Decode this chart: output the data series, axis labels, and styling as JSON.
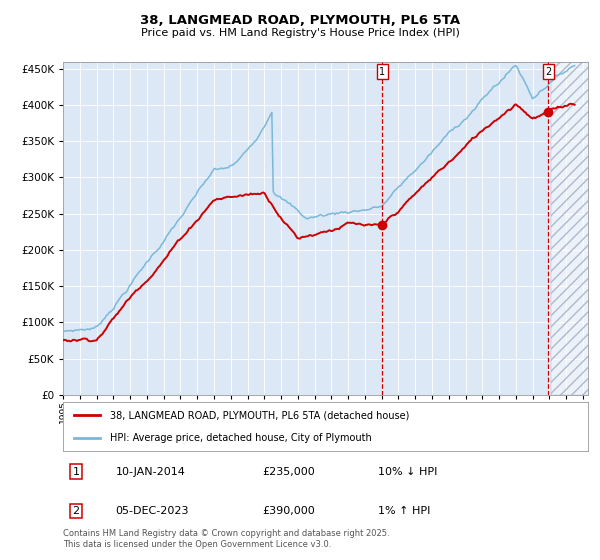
{
  "title": "38, LANGMEAD ROAD, PLYMOUTH, PL6 5TA",
  "subtitle": "Price paid vs. HM Land Registry's House Price Index (HPI)",
  "legend_line1": "38, LANGMEAD ROAD, PLYMOUTH, PL6 5TA (detached house)",
  "legend_line2": "HPI: Average price, detached house, City of Plymouth",
  "annotation1_date": "10-JAN-2014",
  "annotation1_price": "£235,000",
  "annotation1_hpi": "10% ↓ HPI",
  "annotation2_date": "05-DEC-2023",
  "annotation2_price": "£390,000",
  "annotation2_hpi": "1% ↑ HPI",
  "footer": "Contains HM Land Registry data © Crown copyright and database right 2025.\nThis data is licensed under the Open Government Licence v3.0.",
  "hpi_color": "#7ab8d9",
  "price_color": "#cc0000",
  "background_color": "#dce8f5",
  "vline_color": "#cc0000",
  "marker1_x_year": 2014.03,
  "marker1_y": 235000,
  "marker2_x_year": 2023.92,
  "marker2_y": 390000,
  "ylim": [
    0,
    460000
  ],
  "xlim_start": 1995.0,
  "xlim_end": 2026.3,
  "future_shade_start": 2024.08
}
